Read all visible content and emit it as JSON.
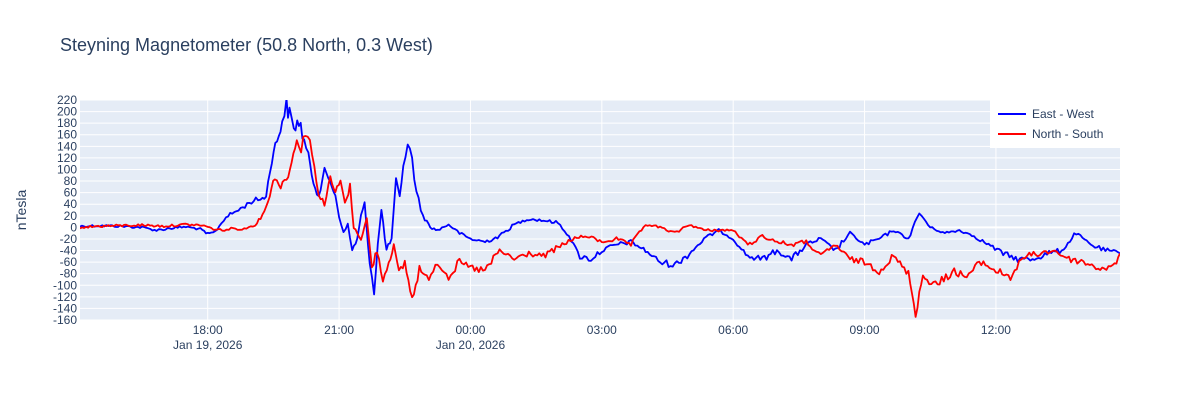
{
  "chart_data": {
    "type": "line",
    "title": "Steyning Magnetometer (50.8 North, 0.3 West)",
    "xlabel": "",
    "ylabel": "nTesla",
    "ylim": [
      -160,
      220
    ],
    "xlim": [
      "2026-01-19 15:05",
      "2026-01-20 14:50"
    ],
    "y_ticks": [
      -160,
      -140,
      -120,
      -100,
      -80,
      -60,
      -40,
      -20,
      0,
      20,
      40,
      60,
      80,
      100,
      120,
      140,
      160,
      180,
      200,
      220
    ],
    "x_ticks": [
      {
        "t": "2026-01-19 18:00",
        "label": "18:00",
        "sublabel": "Jan 19, 2026"
      },
      {
        "t": "2026-01-19 21:00",
        "label": "21:00",
        "sublabel": ""
      },
      {
        "t": "2026-01-20 00:00",
        "label": "00:00",
        "sublabel": "Jan 20, 2026"
      },
      {
        "t": "2026-01-20 03:00",
        "label": "03:00",
        "sublabel": ""
      },
      {
        "t": "2026-01-20 06:00",
        "label": "06:00",
        "sublabel": ""
      },
      {
        "t": "2026-01-20 09:00",
        "label": "09:00",
        "sublabel": ""
      },
      {
        "t": "2026-01-20 12:00",
        "label": "12:00",
        "sublabel": ""
      }
    ],
    "grid": true,
    "legend_position": "top-right",
    "series": [
      {
        "name": "East - West",
        "color": "#0000ff",
        "points": [
          [
            "2026-01-19 15:05",
            2
          ],
          [
            "2026-01-19 15:30",
            3
          ],
          [
            "2026-01-19 16:00",
            2
          ],
          [
            "2026-01-19 16:30",
            0
          ],
          [
            "2026-01-19 16:50",
            -5
          ],
          [
            "2026-01-19 17:05",
            -2
          ],
          [
            "2026-01-19 17:30",
            1
          ],
          [
            "2026-01-19 17:50",
            -3
          ],
          [
            "2026-01-19 18:00",
            -12
          ],
          [
            "2026-01-19 18:10",
            -8
          ],
          [
            "2026-01-19 18:25",
            18
          ],
          [
            "2026-01-19 18:45",
            32
          ],
          [
            "2026-01-19 19:00",
            45
          ],
          [
            "2026-01-19 19:15",
            50
          ],
          [
            "2026-01-19 19:20",
            55
          ],
          [
            "2026-01-19 19:28",
            120
          ],
          [
            "2026-01-19 19:35",
            150
          ],
          [
            "2026-01-19 19:42",
            185
          ],
          [
            "2026-01-19 19:48",
            210
          ],
          [
            "2026-01-19 19:52",
            195
          ],
          [
            "2026-01-19 19:58",
            170
          ],
          [
            "2026-01-19 20:05",
            185
          ],
          [
            "2026-01-19 20:12",
            150
          ],
          [
            "2026-01-19 20:18",
            120
          ],
          [
            "2026-01-19 20:25",
            80
          ],
          [
            "2026-01-19 20:32",
            55
          ],
          [
            "2026-01-19 20:40",
            95
          ],
          [
            "2026-01-19 20:48",
            80
          ],
          [
            "2026-01-19 20:55",
            55
          ],
          [
            "2026-01-19 21:00",
            20
          ],
          [
            "2026-01-19 21:06",
            -10
          ],
          [
            "2026-01-19 21:12",
            5
          ],
          [
            "2026-01-19 21:18",
            -40
          ],
          [
            "2026-01-19 21:25",
            -20
          ],
          [
            "2026-01-19 21:30",
            20
          ],
          [
            "2026-01-19 21:35",
            40
          ],
          [
            "2026-01-19 21:42",
            -60
          ],
          [
            "2026-01-19 21:48",
            -110
          ],
          [
            "2026-01-19 21:53",
            -30
          ],
          [
            "2026-01-19 21:58",
            30
          ],
          [
            "2026-01-19 22:05",
            -40
          ],
          [
            "2026-01-19 22:12",
            -20
          ],
          [
            "2026-01-19 22:18",
            80
          ],
          [
            "2026-01-19 22:23",
            50
          ],
          [
            "2026-01-19 22:28",
            110
          ],
          [
            "2026-01-19 22:34",
            140
          ],
          [
            "2026-01-19 22:40",
            120
          ],
          [
            "2026-01-19 22:46",
            60
          ],
          [
            "2026-01-19 22:55",
            20
          ],
          [
            "2026-01-19 23:05",
            0
          ],
          [
            "2026-01-19 23:15",
            -5
          ],
          [
            "2026-01-19 23:30",
            5
          ],
          [
            "2026-01-19 23:45",
            -10
          ],
          [
            "2026-01-20 00:00",
            -20
          ],
          [
            "2026-01-20 00:20",
            -25
          ],
          [
            "2026-01-20 00:40",
            -15
          ],
          [
            "2026-01-20 01:00",
            5
          ],
          [
            "2026-01-20 01:20",
            15
          ],
          [
            "2026-01-20 01:40",
            12
          ],
          [
            "2026-01-20 02:00",
            8
          ],
          [
            "2026-01-20 02:15",
            -15
          ],
          [
            "2026-01-20 02:30",
            -50
          ],
          [
            "2026-01-20 02:45",
            -55
          ],
          [
            "2026-01-20 03:00",
            -40
          ],
          [
            "2026-01-20 03:20",
            -30
          ],
          [
            "2026-01-20 03:40",
            -25
          ],
          [
            "2026-01-20 04:00",
            -40
          ],
          [
            "2026-01-20 04:20",
            -60
          ],
          [
            "2026-01-20 04:40",
            -65
          ],
          [
            "2026-01-20 05:00",
            -45
          ],
          [
            "2026-01-20 05:20",
            -20
          ],
          [
            "2026-01-20 05:40",
            -5
          ],
          [
            "2026-01-20 06:00",
            -20
          ],
          [
            "2026-01-20 06:20",
            -50
          ],
          [
            "2026-01-20 06:40",
            -55
          ],
          [
            "2026-01-20 07:00",
            -40
          ],
          [
            "2026-01-20 07:20",
            -55
          ],
          [
            "2026-01-20 07:40",
            -30
          ],
          [
            "2026-01-20 08:00",
            -20
          ],
          [
            "2026-01-20 08:20",
            -40
          ],
          [
            "2026-01-20 08:40",
            -10
          ],
          [
            "2026-01-20 09:00",
            -30
          ],
          [
            "2026-01-20 09:20",
            -20
          ],
          [
            "2026-01-20 09:40",
            -5
          ],
          [
            "2026-01-20 10:00",
            -20
          ],
          [
            "2026-01-20 10:15",
            25
          ],
          [
            "2026-01-20 10:30",
            0
          ],
          [
            "2026-01-20 10:50",
            -10
          ],
          [
            "2026-01-20 11:10",
            -5
          ],
          [
            "2026-01-20 11:30",
            -15
          ],
          [
            "2026-01-20 11:50",
            -30
          ],
          [
            "2026-01-20 12:10",
            -45
          ],
          [
            "2026-01-20 12:30",
            -55
          ],
          [
            "2026-01-20 12:50",
            -55
          ],
          [
            "2026-01-20 13:10",
            -45
          ],
          [
            "2026-01-20 13:30",
            -40
          ],
          [
            "2026-01-20 13:50",
            -10
          ],
          [
            "2026-01-20 14:10",
            -30
          ],
          [
            "2026-01-20 14:30",
            -40
          ],
          [
            "2026-01-20 14:50",
            -45
          ]
        ]
      },
      {
        "name": "North - South",
        "color": "#ff0000",
        "points": [
          [
            "2026-01-19 15:05",
            0
          ],
          [
            "2026-01-19 15:30",
            2
          ],
          [
            "2026-01-19 16:00",
            3
          ],
          [
            "2026-01-19 16:30",
            4
          ],
          [
            "2026-01-19 17:00",
            2
          ],
          [
            "2026-01-19 17:30",
            5
          ],
          [
            "2026-01-19 17:55",
            3
          ],
          [
            "2026-01-19 18:05",
            -2
          ],
          [
            "2026-01-19 18:20",
            -5
          ],
          [
            "2026-01-19 18:35",
            -2
          ],
          [
            "2026-01-19 18:50",
            -3
          ],
          [
            "2026-01-19 19:05",
            5
          ],
          [
            "2026-01-19 19:15",
            20
          ],
          [
            "2026-01-19 19:25",
            55
          ],
          [
            "2026-01-19 19:32",
            90
          ],
          [
            "2026-01-19 19:40",
            70
          ],
          [
            "2026-01-19 19:48",
            85
          ],
          [
            "2026-01-19 19:55",
            110
          ],
          [
            "2026-01-19 20:02",
            160
          ],
          [
            "2026-01-19 20:08",
            130
          ],
          [
            "2026-01-19 20:14",
            170
          ],
          [
            "2026-01-19 20:20",
            150
          ],
          [
            "2026-01-19 20:26",
            100
          ],
          [
            "2026-01-19 20:32",
            60
          ],
          [
            "2026-01-19 20:40",
            40
          ],
          [
            "2026-01-19 20:48",
            85
          ],
          [
            "2026-01-19 20:55",
            60
          ],
          [
            "2026-01-19 21:02",
            80
          ],
          [
            "2026-01-19 21:08",
            40
          ],
          [
            "2026-01-19 21:15",
            70
          ],
          [
            "2026-01-19 21:20",
            0
          ],
          [
            "2026-01-19 21:30",
            -20
          ],
          [
            "2026-01-19 21:38",
            15
          ],
          [
            "2026-01-19 21:45",
            -70
          ],
          [
            "2026-01-19 21:52",
            -40
          ],
          [
            "2026-01-19 22:00",
            -90
          ],
          [
            "2026-01-19 22:08",
            -60
          ],
          [
            "2026-01-19 22:15",
            -30
          ],
          [
            "2026-01-19 22:22",
            -80
          ],
          [
            "2026-01-19 22:30",
            -60
          ],
          [
            "2026-01-19 22:40",
            -125
          ],
          [
            "2026-01-19 22:50",
            -70
          ],
          [
            "2026-01-19 23:00",
            -90
          ],
          [
            "2026-01-19 23:15",
            -60
          ],
          [
            "2026-01-19 23:30",
            -85
          ],
          [
            "2026-01-19 23:45",
            -60
          ],
          [
            "2026-01-20 00:00",
            -70
          ],
          [
            "2026-01-20 00:20",
            -75
          ],
          [
            "2026-01-20 00:40",
            -40
          ],
          [
            "2026-01-20 01:00",
            -55
          ],
          [
            "2026-01-20 01:20",
            -45
          ],
          [
            "2026-01-20 01:40",
            -50
          ],
          [
            "2026-01-20 02:00",
            -35
          ],
          [
            "2026-01-20 02:20",
            -20
          ],
          [
            "2026-01-20 02:40",
            -15
          ],
          [
            "2026-01-20 03:00",
            -25
          ],
          [
            "2026-01-20 03:20",
            -20
          ],
          [
            "2026-01-20 03:40",
            -30
          ],
          [
            "2026-01-20 04:00",
            5
          ],
          [
            "2026-01-20 04:20",
            0
          ],
          [
            "2026-01-20 04:40",
            -10
          ],
          [
            "2026-01-20 05:00",
            5
          ],
          [
            "2026-01-20 05:20",
            -5
          ],
          [
            "2026-01-20 05:40",
            -5
          ],
          [
            "2026-01-20 06:00",
            -5
          ],
          [
            "2026-01-20 06:20",
            -30
          ],
          [
            "2026-01-20 06:40",
            -15
          ],
          [
            "2026-01-20 07:00",
            -25
          ],
          [
            "2026-01-20 07:20",
            -30
          ],
          [
            "2026-01-20 07:40",
            -25
          ],
          [
            "2026-01-20 08:00",
            -50
          ],
          [
            "2026-01-20 08:20",
            -30
          ],
          [
            "2026-01-20 08:40",
            -55
          ],
          [
            "2026-01-20 09:00",
            -60
          ],
          [
            "2026-01-20 09:20",
            -75
          ],
          [
            "2026-01-20 09:40",
            -50
          ],
          [
            "2026-01-20 10:00",
            -80
          ],
          [
            "2026-01-20 10:10",
            -145
          ],
          [
            "2026-01-20 10:20",
            -85
          ],
          [
            "2026-01-20 10:40",
            -100
          ],
          [
            "2026-01-20 11:00",
            -75
          ],
          [
            "2026-01-20 11:20",
            -85
          ],
          [
            "2026-01-20 11:40",
            -60
          ],
          [
            "2026-01-20 12:00",
            -75
          ],
          [
            "2026-01-20 12:20",
            -85
          ],
          [
            "2026-01-20 12:40",
            -50
          ],
          [
            "2026-01-20 13:00",
            -45
          ],
          [
            "2026-01-20 13:20",
            -40
          ],
          [
            "2026-01-20 13:40",
            -55
          ],
          [
            "2026-01-20 14:00",
            -60
          ],
          [
            "2026-01-20 14:20",
            -70
          ],
          [
            "2026-01-20 14:40",
            -70
          ],
          [
            "2026-01-20 14:50",
            -45
          ]
        ]
      }
    ]
  }
}
